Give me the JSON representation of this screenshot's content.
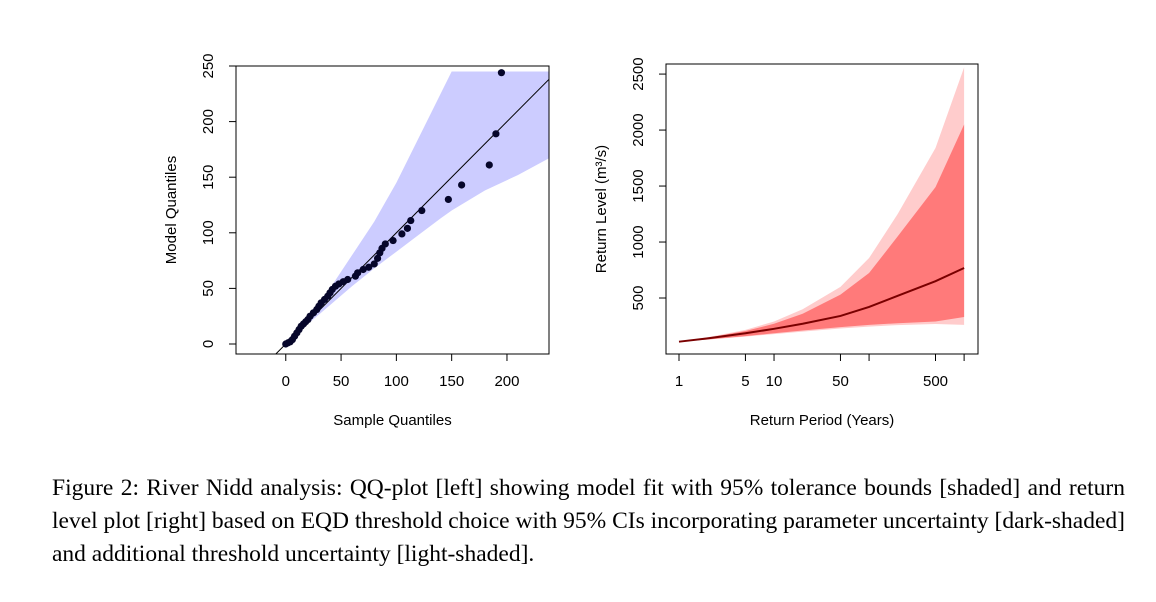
{
  "chart_data": [
    {
      "type": "scatter",
      "xlabel": "Sample Quantiles",
      "ylabel": "Model Quantiles",
      "x": [
        0,
        2,
        4,
        6,
        8,
        10,
        12,
        14,
        16,
        18,
        20,
        22,
        25,
        28,
        30,
        32,
        35,
        38,
        40,
        42,
        45,
        48,
        52,
        56,
        63,
        65,
        70,
        75,
        80,
        83,
        85,
        87,
        90,
        97,
        105,
        110,
        113,
        123,
        147,
        159,
        184,
        190,
        195
      ],
      "values": [
        0,
        1,
        2,
        4,
        7,
        10,
        13,
        16,
        18,
        20,
        22,
        25,
        28,
        31,
        34,
        37,
        40,
        43,
        46,
        49,
        52,
        54,
        56,
        58,
        61,
        64,
        67,
        69,
        72,
        77,
        82,
        86,
        90,
        93,
        99,
        104,
        111,
        120,
        130,
        143,
        161,
        189,
        244
      ],
      "color": "#06062a",
      "band": {
        "x": [
          0,
          20,
          40,
          60,
          80,
          100,
          120,
          140,
          150,
          180,
          210,
          238
        ],
        "upper": [
          0,
          25,
          50,
          80,
          110,
          145,
          185,
          225,
          245,
          245,
          245,
          245
        ],
        "lower": [
          0,
          18,
          35,
          52,
          68,
          83,
          98,
          113,
          120,
          138,
          152,
          167
        ],
        "color": "#ccccff"
      },
      "reference_line": {
        "x": [
          -10,
          238
        ],
        "values": [
          -10,
          238
        ],
        "color": "#000000"
      },
      "xlim": [
        -45,
        238
      ],
      "ylim": [
        -9,
        250
      ],
      "xticks": [
        0,
        50,
        100,
        150,
        200
      ],
      "yticks": [
        0,
        50,
        100,
        150,
        200,
        250
      ]
    },
    {
      "type": "line",
      "xlabel": "Return Period (Years)",
      "ylabel": "Return Level (m³/s)",
      "log_x": true,
      "x": [
        1,
        2,
        5,
        10,
        20,
        50,
        100,
        200,
        500,
        1000
      ],
      "bands": [
        {
          "upper": [
            110,
            150,
            215,
            290,
            400,
            600,
            857,
            1250,
            1840,
            2560
          ],
          "lower": [
            110,
            128,
            155,
            178,
            200,
            228,
            245,
            258,
            268,
            260
          ],
          "color": "#ffcccc"
        },
        {
          "upper": [
            110,
            145,
            205,
            270,
            360,
            530,
            723,
            1050,
            1490,
            2050
          ],
          "lower": [
            110,
            130,
            160,
            185,
            210,
            240,
            260,
            275,
            290,
            330
          ],
          "color": "#ff7a7a"
        }
      ],
      "series": [
        {
          "values": [
            110,
            140,
            185,
            225,
            270,
            340,
            420,
            520,
            650,
            768
          ],
          "color": "#7a0000"
        }
      ],
      "xlim": [
        0.73,
        1400
      ],
      "ylim": [
        0,
        2590
      ],
      "xticks": [
        1,
        5,
        10,
        50,
        {
          "value": 100,
          "label": null
        },
        500,
        {
          "value": 1000,
          "label": null
        }
      ],
      "yticks": [
        500,
        1000,
        1500,
        2000,
        2500
      ]
    }
  ],
  "caption": "Figure 2: River Nidd analysis: QQ-plot [left] showing model fit with 95% tolerance bounds [shaded] and return level plot [right] based on EQD threshold choice with 95% CIs incorporating parameter uncertainty [dark-shaded] and additional threshold uncertainty [light-shaded]."
}
